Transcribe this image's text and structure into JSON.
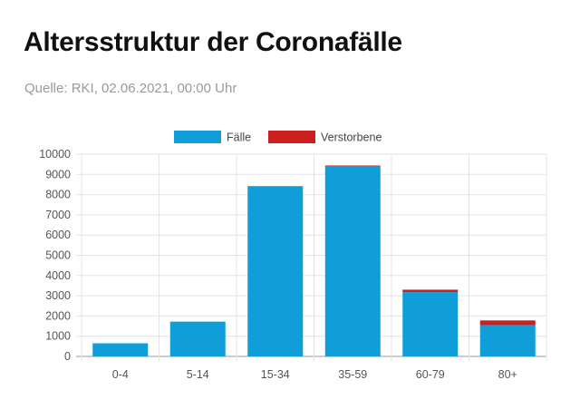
{
  "header": {
    "title": "Altersstruktur der Coronafälle",
    "subtitle": "Quelle: RKI, 02.06.2021, 00:00 Uhr"
  },
  "chart_data": {
    "type": "bar",
    "stacked": true,
    "categories": [
      "0-4",
      "5-14",
      "15-34",
      "35-59",
      "60-79",
      "80+"
    ],
    "series": [
      {
        "name": "Fälle",
        "color": "#0f9ed8",
        "values": [
          650,
          1720,
          8420,
          9400,
          3180,
          1550
        ]
      },
      {
        "name": "Verstorbene",
        "color": "#cc1f1f",
        "values": [
          0,
          0,
          0,
          40,
          120,
          230
        ]
      }
    ],
    "ylim": [
      0,
      10000
    ],
    "yticks": [
      "0",
      "1000",
      "2000",
      "3000",
      "4000",
      "5000",
      "6000",
      "7000",
      "8000",
      "9000",
      "10000"
    ],
    "grid": true,
    "legend_position": "top-center"
  }
}
